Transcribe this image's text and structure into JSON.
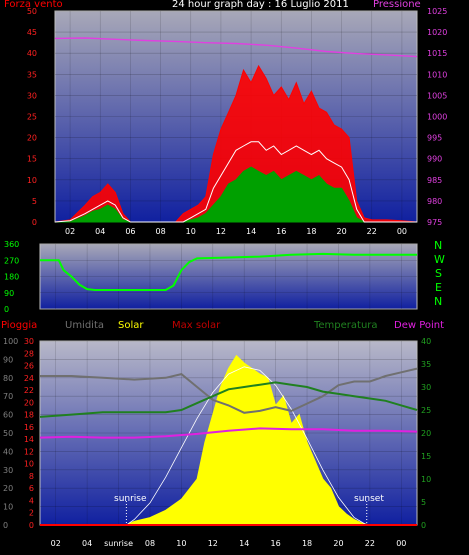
{
  "header": {
    "title": "24 hour graph day : 16 Luglio 2011",
    "left_label": "Forza vento",
    "right_label": "Pressione"
  },
  "legend": {
    "pioggia": "Pioggia",
    "umidita": "Umidita",
    "solar": "Solar",
    "max_solar": "Max solar",
    "temperatura": "Temperatura",
    "dew_point": "Dew Point"
  },
  "labels": {
    "sunrise": "sunrise",
    "sunset": "sunset",
    "sunrise_axis": "sunrise"
  },
  "compass": [
    "N",
    "W",
    "S",
    "E",
    "N"
  ],
  "colors": {
    "wind_gust": "#ff0000",
    "wind_avg": "#00a000",
    "wind_mean": "#ffffff",
    "pressure": "#e040e0",
    "direction": "#00ff00",
    "humidity": "#707070",
    "solar": "#ffff00",
    "max_solar": "#ffffff",
    "temperature": "#208020",
    "dew_point": "#e020e0",
    "rain": "#ff0000"
  },
  "chart_data": [
    {
      "type": "line",
      "name": "wind-pressure",
      "x_ticks": [
        "02",
        "04",
        "06",
        "08",
        "10",
        "12",
        "14",
        "16",
        "18",
        "20",
        "22",
        "00"
      ],
      "y_left_ticks": [
        0,
        5,
        10,
        15,
        20,
        25,
        30,
        35,
        40,
        45,
        50
      ],
      "y_left_range": [
        0,
        50
      ],
      "y_right_ticks": [
        975,
        980,
        985,
        990,
        995,
        1000,
        1005,
        1010,
        1015,
        1020,
        1025
      ],
      "y_right_range": [
        975,
        1025
      ],
      "series": [
        {
          "key": "gust",
          "x": [
            0,
            1,
            2,
            2.5,
            3,
            3.5,
            4,
            4.5,
            5,
            6,
            7,
            8,
            8.5,
            9,
            9.5,
            10,
            10.5,
            11,
            11.5,
            12,
            12.5,
            13,
            13.5,
            14,
            14.5,
            15,
            15.5,
            16,
            16.5,
            17,
            17.5,
            18,
            18.5,
            19,
            19.5,
            20,
            20.5,
            21,
            22,
            23,
            24
          ],
          "y": [
            0,
            0.5,
            4,
            6,
            7,
            9,
            7,
            2,
            0,
            0,
            0,
            0,
            2,
            3,
            4,
            6,
            16,
            22,
            26,
            30,
            36,
            33,
            37,
            34,
            30,
            32,
            29,
            33,
            28,
            31,
            27,
            26,
            23,
            22,
            20,
            5,
            1,
            0.5,
            0.5,
            0.3,
            0
          ]
        },
        {
          "key": "mean",
          "x": [
            0,
            1,
            2,
            2.5,
            3,
            3.5,
            4,
            4.5,
            5,
            8.5,
            9,
            9.5,
            10,
            10.5,
            11,
            11.5,
            12,
            12.5,
            13,
            13.5,
            14,
            14.5,
            15,
            15.5,
            16,
            16.5,
            17,
            17.5,
            18,
            18.5,
            19,
            19.5,
            20,
            20.5,
            24
          ],
          "y": [
            0,
            0.3,
            2,
            3,
            4,
            5,
            4,
            1,
            0,
            0,
            1,
            2,
            3,
            8,
            11,
            14,
            17,
            18,
            19,
            19,
            17,
            18,
            16,
            17,
            18,
            17,
            16,
            17,
            15,
            14,
            13,
            10,
            3,
            0,
            0
          ]
        },
        {
          "key": "avg",
          "x": [
            0,
            1,
            2,
            2.5,
            3,
            3.5,
            4,
            4.5,
            5,
            8.5,
            9,
            9.5,
            10,
            10.5,
            11,
            11.5,
            12,
            12.5,
            13,
            13.5,
            14,
            14.5,
            15,
            15.5,
            16,
            16.5,
            17,
            17.5,
            18,
            18.5,
            19,
            19.5,
            20,
            20.5,
            24
          ],
          "y": [
            0,
            0,
            1.5,
            2.5,
            3,
            4,
            3,
            0.5,
            0,
            0,
            0.5,
            1,
            2,
            4,
            6,
            9,
            10,
            12,
            13,
            12,
            11,
            12,
            10,
            11,
            12,
            11,
            10,
            11,
            9,
            8,
            8,
            5,
            1,
            0,
            0
          ]
        },
        {
          "key": "pressure",
          "x": [
            0,
            2,
            4,
            6,
            8,
            10,
            12,
            14,
            16,
            18,
            20,
            22,
            24
          ],
          "y": [
            1018.5,
            1018.6,
            1018.3,
            1018.0,
            1017.8,
            1017.5,
            1017.3,
            1016.9,
            1016.2,
            1015.4,
            1014.9,
            1014.6,
            1014.2
          ]
        }
      ]
    },
    {
      "type": "line",
      "name": "wind-direction",
      "x_ticks": [
        "02",
        "04",
        "06",
        "08",
        "10",
        "12",
        "14",
        "16",
        "18",
        "20",
        "22",
        "00"
      ],
      "y_ticks": [
        0,
        90,
        180,
        270,
        360
      ],
      "y_range": [
        0,
        360
      ],
      "series": [
        {
          "key": "direction",
          "x": [
            0,
            1.2,
            1.5,
            2.0,
            2.5,
            3.0,
            3.5,
            5,
            8,
            8.5,
            9.0,
            9.5,
            10,
            12,
            14,
            16,
            18,
            20,
            22,
            24
          ],
          "y": [
            270,
            270,
            215,
            180,
            135,
            110,
            105,
            105,
            105,
            130,
            215,
            260,
            280,
            285,
            290,
            300,
            305,
            300,
            300,
            300
          ]
        }
      ]
    },
    {
      "type": "area",
      "name": "solar-temperature",
      "x_ticks": [
        "02",
        "04",
        "sunrise",
        "08",
        "10",
        "12",
        "14",
        "16",
        "18",
        "20",
        "22",
        "00"
      ],
      "y_left1_ticks": [
        0,
        10,
        20,
        30,
        40,
        50,
        60,
        70,
        80,
        90,
        100
      ],
      "y_left2_ticks": [
        0,
        2,
        4,
        6,
        8,
        10,
        12,
        14,
        16,
        18,
        20,
        22,
        24,
        26,
        28,
        30
      ],
      "y_right_ticks": [
        0,
        5,
        10,
        15,
        20,
        25,
        30,
        35,
        40
      ],
      "humidity_range": [
        0,
        100
      ],
      "rain_range": [
        0,
        30
      ],
      "temperature_range": [
        0,
        40
      ],
      "series": [
        {
          "key": "humidity",
          "x": [
            0,
            2,
            4,
            6,
            8,
            9,
            10,
            11,
            12,
            13,
            14,
            15,
            16,
            17,
            18,
            19,
            20,
            21,
            22,
            23,
            24
          ],
          "y": [
            81,
            81,
            80,
            79,
            80,
            82,
            75,
            68,
            65,
            61,
            62,
            64,
            62,
            66,
            70,
            76,
            78,
            78,
            81,
            83,
            85
          ]
        },
        {
          "key": "temperature",
          "x": [
            0,
            2,
            4,
            6,
            8,
            9,
            10,
            11,
            12,
            13,
            14,
            15,
            16,
            17,
            18,
            19,
            20,
            21,
            22,
            23,
            24
          ],
          "y": [
            23.5,
            24.0,
            24.5,
            24.5,
            24.5,
            25.0,
            26.5,
            28.0,
            29.5,
            30.0,
            30.5,
            31.0,
            30.5,
            30.0,
            29.0,
            28.5,
            28.0,
            27.5,
            27.0,
            26.0,
            25.0
          ]
        },
        {
          "key": "dew_point",
          "x": [
            0,
            2,
            4,
            6,
            8,
            10,
            12,
            14,
            16,
            18,
            20,
            22,
            24
          ],
          "y": [
            19.0,
            19.2,
            19.0,
            19.0,
            19.3,
            19.8,
            20.5,
            21.0,
            20.8,
            20.8,
            20.5,
            20.5,
            20.3
          ]
        },
        {
          "key": "solar",
          "x": [
            5.5,
            6,
            7,
            8,
            9,
            10,
            10.5,
            11,
            11.5,
            12,
            12.5,
            13,
            13.5,
            14,
            14.5,
            15,
            15.5,
            16,
            16.5,
            17,
            17.5,
            18,
            18.5,
            19,
            19.5,
            20,
            20.5,
            21
          ],
          "y": [
            0,
            2,
            4,
            8,
            14,
            25,
            45,
            60,
            75,
            85,
            92,
            88,
            85,
            82,
            80,
            65,
            70,
            55,
            60,
            45,
            35,
            25,
            20,
            10,
            6,
            3,
            1,
            0
          ]
        },
        {
          "key": "max_solar",
          "x": [
            5.5,
            6,
            7,
            8,
            9,
            10,
            11,
            12,
            13,
            14,
            15,
            16,
            17,
            18,
            19,
            20,
            20.8
          ],
          "y": [
            0,
            3,
            12,
            26,
            42,
            58,
            72,
            82,
            86,
            84,
            76,
            63,
            47,
            30,
            15,
            4,
            0
          ]
        },
        {
          "key": "rain",
          "x": [
            0,
            24
          ],
          "y": [
            0,
            0
          ]
        }
      ]
    }
  ]
}
